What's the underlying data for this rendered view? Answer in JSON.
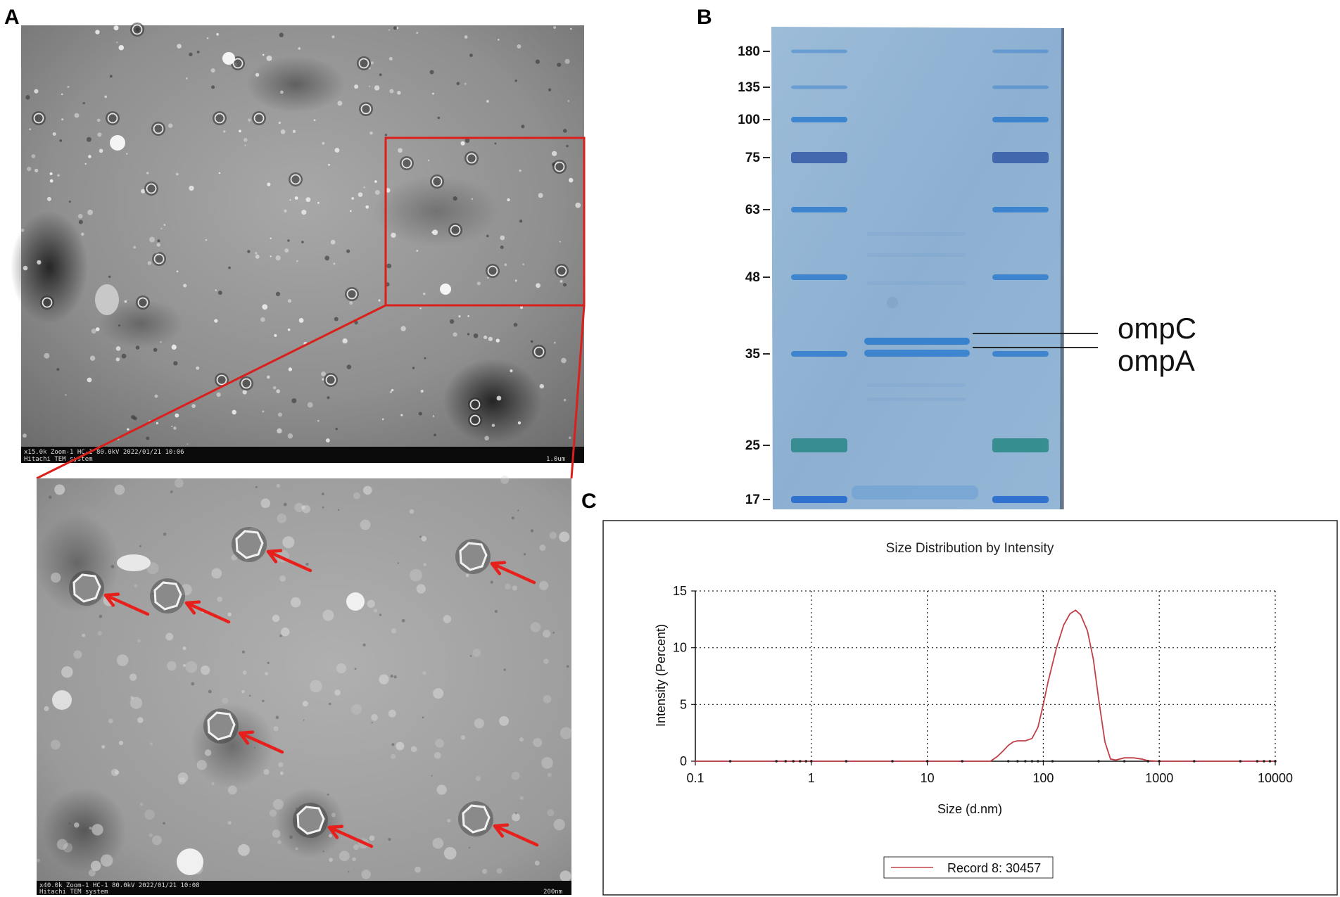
{
  "panels": {
    "a": "A",
    "b": "B",
    "c": "C"
  },
  "tem": {
    "top_caption_1": "x15.0k Zoom-1 HC-1 80.0kV 2022/01/21 10:06",
    "top_caption_2": "Hitachi TEM system",
    "top_scale": "1.0um",
    "bottom_caption_1": "x40.0k Zoom-1 HC-1 80.0kV 2022/01/21 10:08",
    "bottom_caption_2": "Hitachi TEM system",
    "bottom_scale": "200nm",
    "arrow_color": "#e8201c",
    "box_color": "#d9201c"
  },
  "gel": {
    "markers": [
      "180",
      "135",
      "100",
      "75",
      "63",
      "48",
      "35",
      "25",
      "17"
    ],
    "bands": [
      "ompC",
      "ompA"
    ],
    "background": "#8fb4d6",
    "band_color": "#2f7ccc"
  },
  "chart_data": {
    "type": "line",
    "title": "Size Distribution by Intensity",
    "xlabel": "Size (d.nm)",
    "ylabel": "Intensity (Percent)",
    "xscale": "log",
    "xlim": [
      0.1,
      10000
    ],
    "ylim": [
      0,
      15
    ],
    "xticks": [
      "0.1",
      "1",
      "10",
      "100",
      "1000",
      "10000"
    ],
    "yticks": [
      "0",
      "5",
      "10",
      "15"
    ],
    "grid": true,
    "legend_position": "bottom",
    "series": [
      {
        "name": "Record 8: 30457",
        "color": "#c0404a",
        "x": [
          0.1,
          35,
          40,
          45,
          50,
          55,
          60,
          70,
          80,
          90,
          100,
          110,
          130,
          150,
          170,
          190,
          210,
          240,
          270,
          300,
          340,
          380,
          420,
          500,
          600,
          700,
          800,
          1000,
          10000
        ],
        "y": [
          0,
          0,
          0.4,
          0.9,
          1.4,
          1.7,
          1.8,
          1.8,
          2.0,
          3.0,
          5.0,
          7.0,
          10.0,
          12.0,
          13.0,
          13.3,
          12.9,
          11.5,
          9.0,
          5.5,
          1.7,
          0.2,
          0.1,
          0.3,
          0.3,
          0.2,
          0.05,
          0,
          0
        ]
      }
    ]
  }
}
